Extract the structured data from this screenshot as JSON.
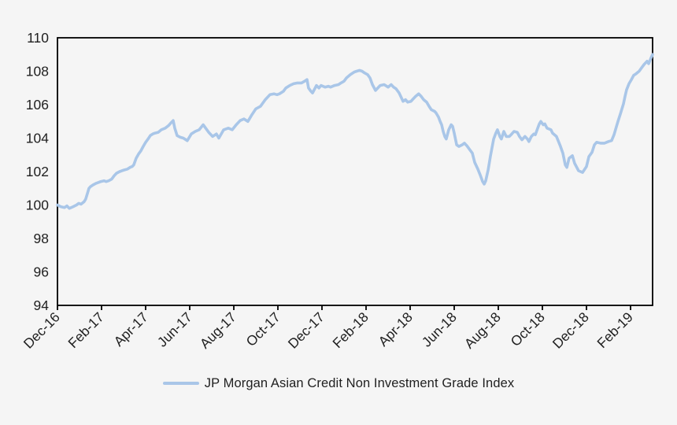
{
  "page": {
    "background": "#f5f5f5"
  },
  "legend": {
    "label": "JP Morgan Asian Credit Non Investment Grade Index",
    "swatch_color": "#a9c6e8"
  },
  "axes": {
    "text_color": "#1f1f1f",
    "line_color": "#000000"
  },
  "chart_data": {
    "type": "line",
    "title": "",
    "xlabel": "",
    "ylabel": "",
    "grid": false,
    "legend_position": "bottom-center",
    "ylim": [
      94,
      110
    ],
    "y_ticks": [
      94,
      96,
      98,
      100,
      102,
      104,
      106,
      108,
      110
    ],
    "xlim_months": [
      0,
      27
    ],
    "x_tick_months": [
      0,
      2,
      4,
      6,
      8,
      10,
      12,
      14,
      16,
      18,
      20,
      22,
      24,
      26
    ],
    "x_tick_labels": [
      "Dec-16",
      "Feb-17",
      "Apr-17",
      "Jun-17",
      "Aug-17",
      "Oct-17",
      "Dec-17",
      "Feb-18",
      "Apr-18",
      "Jun-18",
      "Aug-18",
      "Oct-18",
      "Dec-18",
      "Feb-19"
    ],
    "series": [
      {
        "name": "JP Morgan Asian Credit Non Investment Grade Index",
        "color": "#a9c6e8",
        "points": [
          [
            0,
            100
          ],
          [
            0.15,
            99.9
          ],
          [
            0.32,
            99.85
          ],
          [
            0.43,
            99.95
          ],
          [
            0.54,
            99.8
          ],
          [
            0.71,
            99.9
          ],
          [
            0.86,
            100
          ],
          [
            0.96,
            100.1
          ],
          [
            1.07,
            100.05
          ],
          [
            1.21,
            100.2
          ],
          [
            1.28,
            100.35
          ],
          [
            1.36,
            100.7
          ],
          [
            1.43,
            101
          ],
          [
            1.5,
            101.1
          ],
          [
            1.61,
            101.2
          ],
          [
            1.75,
            101.3
          ],
          [
            1.86,
            101.35
          ],
          [
            1.96,
            101.4
          ],
          [
            2.11,
            101.45
          ],
          [
            2.21,
            101.4
          ],
          [
            2.32,
            101.45
          ],
          [
            2.46,
            101.55
          ],
          [
            2.57,
            101.75
          ],
          [
            2.68,
            101.9
          ],
          [
            2.82,
            102
          ],
          [
            2.93,
            102.05
          ],
          [
            3.04,
            102.1
          ],
          [
            3.18,
            102.15
          ],
          [
            3.29,
            102.25
          ],
          [
            3.39,
            102.3
          ],
          [
            3.46,
            102.4
          ],
          [
            3.57,
            102.8
          ],
          [
            3.68,
            103.05
          ],
          [
            3.79,
            103.25
          ],
          [
            3.89,
            103.5
          ],
          [
            4,
            103.75
          ],
          [
            4.11,
            103.95
          ],
          [
            4.21,
            104.15
          ],
          [
            4.32,
            104.25
          ],
          [
            4.43,
            104.3
          ],
          [
            4.57,
            104.35
          ],
          [
            4.71,
            104.5
          ],
          [
            4.89,
            104.6
          ],
          [
            5.04,
            104.75
          ],
          [
            5.14,
            104.9
          ],
          [
            5.25,
            105.05
          ],
          [
            5.32,
            104.6
          ],
          [
            5.43,
            104.15
          ],
          [
            5.57,
            104.05
          ],
          [
            5.71,
            104
          ],
          [
            5.89,
            103.85
          ],
          [
            6.07,
            104.25
          ],
          [
            6.25,
            104.4
          ],
          [
            6.43,
            104.5
          ],
          [
            6.61,
            104.8
          ],
          [
            6.75,
            104.55
          ],
          [
            6.86,
            104.35
          ],
          [
            7.04,
            104.1
          ],
          [
            7.21,
            104.25
          ],
          [
            7.32,
            104
          ],
          [
            7.54,
            104.5
          ],
          [
            7.75,
            104.6
          ],
          [
            7.93,
            104.5
          ],
          [
            8.11,
            104.8
          ],
          [
            8.29,
            105.05
          ],
          [
            8.46,
            105.15
          ],
          [
            8.64,
            105
          ],
          [
            8.82,
            105.4
          ],
          [
            9,
            105.75
          ],
          [
            9.21,
            105.9
          ],
          [
            9.43,
            106.3
          ],
          [
            9.64,
            106.6
          ],
          [
            9.82,
            106.65
          ],
          [
            9.96,
            106.6
          ],
          [
            10.07,
            106.65
          ],
          [
            10.25,
            106.8
          ],
          [
            10.36,
            107
          ],
          [
            10.54,
            107.15
          ],
          [
            10.71,
            107.25
          ],
          [
            10.89,
            107.3
          ],
          [
            11.07,
            107.3
          ],
          [
            11.21,
            107.4
          ],
          [
            11.32,
            107.5
          ],
          [
            11.39,
            107
          ],
          [
            11.5,
            106.8
          ],
          [
            11.57,
            106.7
          ],
          [
            11.75,
            107.15
          ],
          [
            11.86,
            107
          ],
          [
            11.96,
            107.15
          ],
          [
            12.14,
            107.05
          ],
          [
            12.29,
            107.1
          ],
          [
            12.39,
            107.05
          ],
          [
            12.57,
            107.15
          ],
          [
            12.75,
            107.2
          ],
          [
            12.86,
            107.3
          ],
          [
            13,
            107.4
          ],
          [
            13.11,
            107.6
          ],
          [
            13.29,
            107.8
          ],
          [
            13.46,
            107.95
          ],
          [
            13.57,
            108
          ],
          [
            13.71,
            108.05
          ],
          [
            13.82,
            108
          ],
          [
            13.93,
            107.9
          ],
          [
            14.07,
            107.8
          ],
          [
            14.18,
            107.6
          ],
          [
            14.29,
            107.2
          ],
          [
            14.43,
            106.85
          ],
          [
            14.64,
            107.15
          ],
          [
            14.82,
            107.2
          ],
          [
            15,
            107.05
          ],
          [
            15.14,
            107.2
          ],
          [
            15.25,
            107.05
          ],
          [
            15.36,
            106.95
          ],
          [
            15.5,
            106.7
          ],
          [
            15.68,
            106.2
          ],
          [
            15.79,
            106.3
          ],
          [
            15.89,
            106.15
          ],
          [
            16.04,
            106.2
          ],
          [
            16.14,
            106.35
          ],
          [
            16.25,
            106.5
          ],
          [
            16.39,
            106.65
          ],
          [
            16.5,
            106.5
          ],
          [
            16.61,
            106.3
          ],
          [
            16.75,
            106.15
          ],
          [
            16.86,
            105.9
          ],
          [
            16.96,
            105.7
          ],
          [
            17.11,
            105.6
          ],
          [
            17.18,
            105.5
          ],
          [
            17.29,
            105.25
          ],
          [
            17.36,
            105
          ],
          [
            17.43,
            104.8
          ],
          [
            17.5,
            104.4
          ],
          [
            17.57,
            104.1
          ],
          [
            17.64,
            103.95
          ],
          [
            17.75,
            104.5
          ],
          [
            17.86,
            104.8
          ],
          [
            17.93,
            104.7
          ],
          [
            18,
            104.3
          ],
          [
            18.11,
            103.6
          ],
          [
            18.21,
            103.5
          ],
          [
            18.36,
            103.6
          ],
          [
            18.46,
            103.7
          ],
          [
            18.57,
            103.55
          ],
          [
            18.71,
            103.3
          ],
          [
            18.82,
            103.1
          ],
          [
            18.93,
            102.55
          ],
          [
            19.07,
            102.15
          ],
          [
            19.18,
            101.8
          ],
          [
            19.29,
            101.4
          ],
          [
            19.36,
            101.25
          ],
          [
            19.43,
            101.45
          ],
          [
            19.54,
            102.1
          ],
          [
            19.64,
            102.9
          ],
          [
            19.79,
            103.95
          ],
          [
            19.89,
            104.3
          ],
          [
            19.96,
            104.5
          ],
          [
            20.07,
            104.1
          ],
          [
            20.14,
            103.95
          ],
          [
            20.25,
            104.4
          ],
          [
            20.36,
            104.1
          ],
          [
            20.5,
            104.1
          ],
          [
            20.61,
            104.25
          ],
          [
            20.71,
            104.4
          ],
          [
            20.86,
            104.35
          ],
          [
            20.96,
            104.1
          ],
          [
            21.07,
            103.9
          ],
          [
            21.21,
            104.1
          ],
          [
            21.32,
            103.95
          ],
          [
            21.39,
            103.8
          ],
          [
            21.5,
            104.1
          ],
          [
            21.61,
            104.25
          ],
          [
            21.68,
            104.2
          ],
          [
            21.79,
            104.6
          ],
          [
            21.86,
            104.85
          ],
          [
            21.93,
            105
          ],
          [
            22.04,
            104.8
          ],
          [
            22.11,
            104.85
          ],
          [
            22.21,
            104.6
          ],
          [
            22.39,
            104.5
          ],
          [
            22.46,
            104.3
          ],
          [
            22.64,
            104.1
          ],
          [
            22.82,
            103.5
          ],
          [
            22.93,
            103.1
          ],
          [
            23.04,
            102.4
          ],
          [
            23.11,
            102.25
          ],
          [
            23.21,
            102.8
          ],
          [
            23.36,
            102.95
          ],
          [
            23.46,
            102.5
          ],
          [
            23.64,
            102.05
          ],
          [
            23.82,
            101.95
          ],
          [
            24,
            102.3
          ],
          [
            24.11,
            102.9
          ],
          [
            24.25,
            103.15
          ],
          [
            24.36,
            103.6
          ],
          [
            24.46,
            103.75
          ],
          [
            24.64,
            103.7
          ],
          [
            24.82,
            103.7
          ],
          [
            25,
            103.8
          ],
          [
            25.14,
            103.85
          ],
          [
            25.25,
            104.2
          ],
          [
            25.36,
            104.7
          ],
          [
            25.43,
            105
          ],
          [
            25.54,
            105.45
          ],
          [
            25.68,
            106.05
          ],
          [
            25.75,
            106.5
          ],
          [
            25.82,
            106.9
          ],
          [
            25.93,
            107.25
          ],
          [
            26.04,
            107.5
          ],
          [
            26.14,
            107.75
          ],
          [
            26.25,
            107.85
          ],
          [
            26.39,
            108
          ],
          [
            26.5,
            108.2
          ],
          [
            26.61,
            108.4
          ],
          [
            26.75,
            108.6
          ],
          [
            26.82,
            108.45
          ],
          [
            26.93,
            108.8
          ],
          [
            27,
            109
          ]
        ]
      }
    ]
  }
}
